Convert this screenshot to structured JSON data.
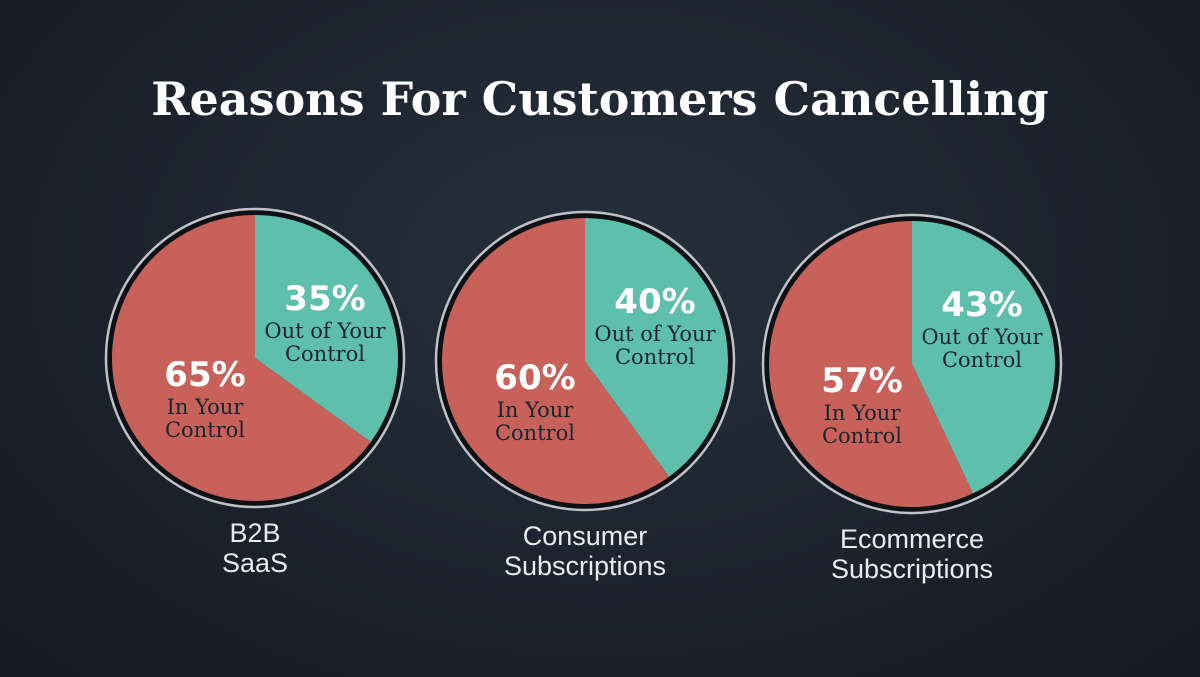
{
  "chart_data": [
    {
      "type": "pie",
      "category": [
        "B2B",
        "SaaS"
      ],
      "slices": [
        {
          "label": [
            "In Your",
            "Control"
          ],
          "value": 65,
          "display": "65%"
        },
        {
          "label": [
            "Out of Your",
            "Control"
          ],
          "value": 35,
          "display": "35%"
        }
      ]
    },
    {
      "type": "pie",
      "category": [
        "Consumer",
        "Subscriptions"
      ],
      "slices": [
        {
          "label": [
            "In Your",
            "Control"
          ],
          "value": 60,
          "display": "60%"
        },
        {
          "label": [
            "Out of Your",
            "Control"
          ],
          "value": 40,
          "display": "40%"
        }
      ]
    },
    {
      "type": "pie",
      "category": [
        "Ecommerce",
        "Subscriptions"
      ],
      "slices": [
        {
          "label": [
            "In Your",
            "Control"
          ],
          "value": 57,
          "display": "57%"
        },
        {
          "label": [
            "Out of Your",
            "Control"
          ],
          "value": 43,
          "display": "43%"
        }
      ]
    }
  ],
  "title": "Reasons For Customers Cancelling",
  "colors": {
    "in_control": "#c9615b",
    "out_of_control": "#5fbfad",
    "label_text": "#1a2530"
  }
}
